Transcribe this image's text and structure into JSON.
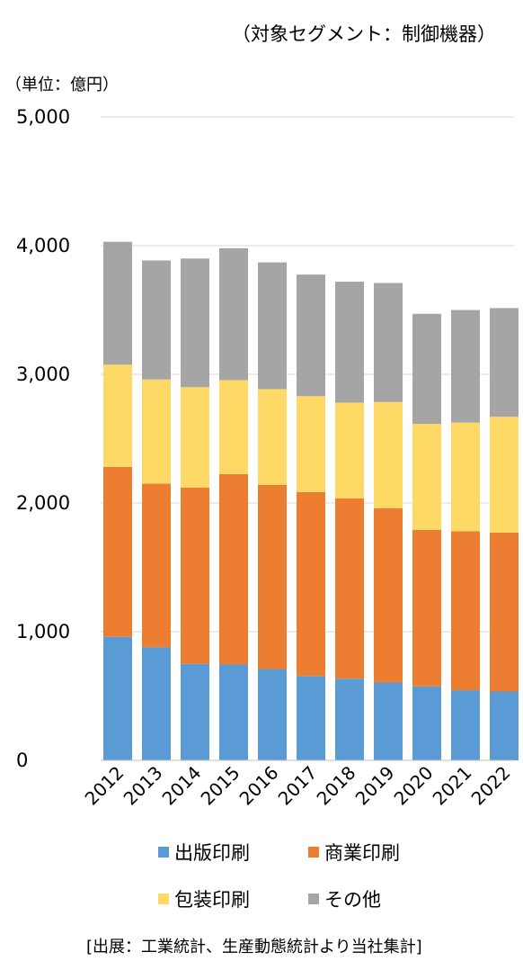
{
  "header": {
    "segment_label": "（対象セグメント：制御機器）",
    "unit_label": "（単位：億円）"
  },
  "footer": {
    "source_note": "[出展：工業統計、生産動態統計より当社集計]"
  },
  "colors": {
    "grid": "#d9d9d9",
    "axis": "#bfbfbf",
    "text": "#000000"
  },
  "chart_data": {
    "type": "bar",
    "stacked": true,
    "categories": [
      "2012",
      "2013",
      "2014",
      "2015",
      "2016",
      "2017",
      "2018",
      "2019",
      "2020",
      "2021",
      "2022"
    ],
    "series": [
      {
        "name": "出版印刷",
        "color": "#5b9bd5",
        "values": [
          960,
          880,
          750,
          745,
          710,
          655,
          635,
          605,
          575,
          545,
          535
        ]
      },
      {
        "name": "商業印刷",
        "color": "#ed7d31",
        "values": [
          1320,
          1270,
          1370,
          1480,
          1430,
          1430,
          1400,
          1355,
          1215,
          1235,
          1235
        ]
      },
      {
        "name": "包装印刷",
        "color": "#ffd966",
        "values": [
          795,
          810,
          780,
          730,
          745,
          745,
          745,
          825,
          825,
          845,
          900
        ]
      },
      {
        "name": "その他",
        "color": "#a5a5a5",
        "values": [
          955,
          925,
          1000,
          1025,
          985,
          945,
          940,
          925,
          855,
          875,
          845
        ]
      }
    ],
    "ylim": [
      0,
      5000
    ],
    "yticks": [
      0,
      1000,
      2000,
      3000,
      4000,
      5000
    ],
    "ytick_labels": [
      "0",
      "1,000",
      "2,000",
      "3,000",
      "4,000",
      "5,000"
    ],
    "grid": true,
    "legend_position": "bottom"
  }
}
